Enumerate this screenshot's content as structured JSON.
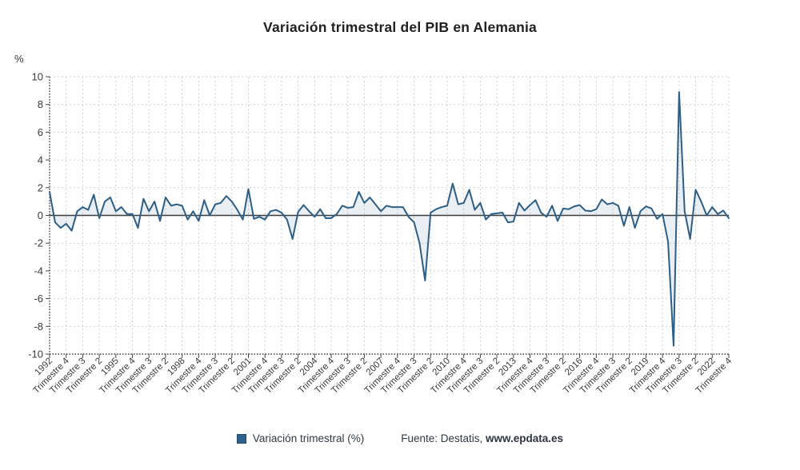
{
  "header": {
    "title": "Variación trimestral del PIB en Alemania"
  },
  "legend": {
    "series_label": "Variación trimestral (%)",
    "swatch_color": "#2e608c"
  },
  "source": {
    "prefix": "Fuente: Destatis,",
    "link": "www.epdata.es"
  },
  "chart_data": {
    "type": "line",
    "title": "Variación trimestral del PIB en Alemania",
    "xlabel": "",
    "ylabel": "%",
    "ylim": [
      -10,
      10
    ],
    "y_ticks": [
      10,
      8,
      6,
      4,
      2,
      0,
      -2,
      -4,
      -6,
      -8,
      -10
    ],
    "grid": true,
    "legend_position": "bottom",
    "line_color": "#2e5f87",
    "fill_color": "rgba(46,95,135,0.10)",
    "x_start": "1992 Trimestre 1",
    "x_end": "2022 Trimestre 4",
    "x_tick_every": 3,
    "x_tick_labels": [
      "1992",
      "Trimestre 4",
      "Trimestre 3",
      "Trimestre 2",
      "1995",
      "Trimestre 4",
      "Trimestre 3",
      "Trimestre 2",
      "1998",
      "Trimestre 4",
      "Trimestre 3",
      "Trimestre 2",
      "2001",
      "Trimestre 4",
      "Trimestre 3",
      "Trimestre 2",
      "2004",
      "Trimestre 4",
      "Trimestre 3",
      "Trimestre 2",
      "2007",
      "Trimestre 4",
      "Trimestre 3",
      "Trimestre 2",
      "2010",
      "Trimestre 4",
      "Trimestre 3",
      "Trimestre 2",
      "2013",
      "Trimestre 4",
      "Trimestre 3",
      "Trimestre 2",
      "2016",
      "Trimestre 4",
      "Trimestre 3",
      "Trimestre 2",
      "2019",
      "Trimestre 4",
      "Trimestre 3",
      "Trimestre 2",
      "2022",
      "Trimestre 4"
    ],
    "series": [
      {
        "name": "Variación trimestral (%)",
        "values": [
          1.7,
          -0.5,
          -0.9,
          -0.6,
          -1.1,
          0.3,
          0.6,
          0.4,
          1.5,
          -0.2,
          1.0,
          1.3,
          0.3,
          0.6,
          0.1,
          0.1,
          -0.9,
          1.2,
          0.3,
          1.0,
          -0.4,
          1.3,
          0.7,
          0.8,
          0.7,
          -0.3,
          0.3,
          -0.4,
          1.1,
          0.0,
          0.8,
          0.9,
          1.4,
          1.0,
          0.4,
          -0.3,
          1.9,
          -0.25,
          -0.1,
          -0.3,
          0.3,
          0.4,
          0.2,
          -0.3,
          -1.7,
          0.25,
          0.75,
          0.3,
          -0.1,
          0.45,
          -0.2,
          -0.2,
          0.1,
          0.7,
          0.55,
          0.6,
          1.7,
          0.9,
          1.3,
          0.8,
          0.3,
          0.7,
          0.6,
          0.6,
          0.6,
          -0.1,
          -0.5,
          -2.0,
          -4.7,
          0.2,
          0.45,
          0.6,
          0.7,
          2.3,
          0.8,
          0.9,
          1.85,
          0.4,
          0.9,
          -0.3,
          0.1,
          0.15,
          0.2,
          -0.5,
          -0.45,
          0.9,
          0.35,
          0.75,
          1.1,
          0.2,
          -0.1,
          0.7,
          -0.4,
          0.5,
          0.45,
          0.65,
          0.75,
          0.35,
          0.3,
          0.45,
          1.15,
          0.8,
          0.9,
          0.7,
          -0.75,
          0.6,
          -0.9,
          0.3,
          0.65,
          0.5,
          -0.25,
          0.1,
          -1.9,
          -9.4,
          8.9,
          0.3,
          -1.7,
          1.85,
          1.0,
          0.0,
          0.6,
          0.1,
          0.35,
          -0.2
        ]
      }
    ]
  }
}
